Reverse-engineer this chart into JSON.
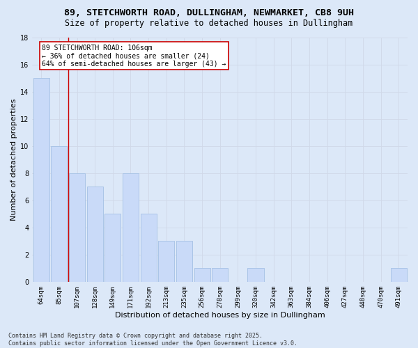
{
  "title1": "89, STETCHWORTH ROAD, DULLINGHAM, NEWMARKET, CB8 9UH",
  "title2": "Size of property relative to detached houses in Dullingham",
  "xlabel": "Distribution of detached houses by size in Dullingham",
  "ylabel": "Number of detached properties",
  "categories": [
    "64sqm",
    "85sqm",
    "107sqm",
    "128sqm",
    "149sqm",
    "171sqm",
    "192sqm",
    "213sqm",
    "235sqm",
    "256sqm",
    "278sqm",
    "299sqm",
    "320sqm",
    "342sqm",
    "363sqm",
    "384sqm",
    "406sqm",
    "427sqm",
    "448sqm",
    "470sqm",
    "491sqm"
  ],
  "values": [
    15,
    10,
    8,
    7,
    5,
    8,
    5,
    3,
    3,
    1,
    1,
    0,
    1,
    0,
    0,
    0,
    0,
    0,
    0,
    0,
    1
  ],
  "bar_color": "#c9daf8",
  "bar_edge_color": "#a4c0e4",
  "grid_color": "#d0d8e8",
  "bg_color": "#dce8f8",
  "red_line_x": 1.5,
  "annotation_text": "89 STETCHWORTH ROAD: 106sqm\n← 36% of detached houses are smaller (24)\n64% of semi-detached houses are larger (43) →",
  "annotation_box_color": "#ffffff",
  "annotation_border_color": "#cc0000",
  "ylim": [
    0,
    18
  ],
  "yticks": [
    0,
    2,
    4,
    6,
    8,
    10,
    12,
    14,
    16,
    18
  ],
  "footer": "Contains HM Land Registry data © Crown copyright and database right 2025.\nContains public sector information licensed under the Open Government Licence v3.0.",
  "title_fontsize": 9.5,
  "subtitle_fontsize": 8.5,
  "axis_label_fontsize": 8,
  "tick_fontsize": 6.5,
  "footer_fontsize": 6,
  "annot_fontsize": 7
}
